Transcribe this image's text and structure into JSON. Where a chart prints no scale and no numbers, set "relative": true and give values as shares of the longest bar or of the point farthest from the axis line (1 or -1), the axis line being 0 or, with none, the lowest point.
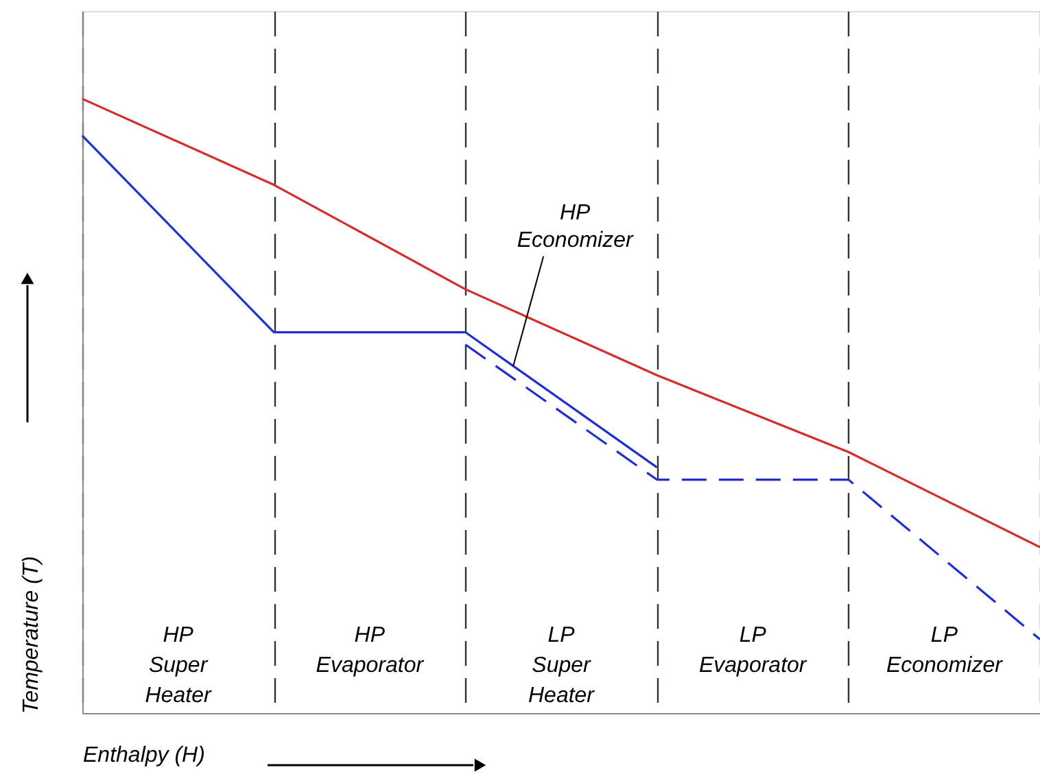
{
  "chart_data": {
    "type": "line",
    "relative": true,
    "xlabel": "Enthalpy (H)",
    "ylabel": "Temperature (T)",
    "categories": [
      null,
      null,
      null,
      null,
      null,
      null
    ],
    "tick_labels": false,
    "grid": "x",
    "marker": "none",
    "series": [
      {
        "color": "#d42b2b",
        "line_style": "solid",
        "values": [
          1.0,
          0.86,
          0.69,
          0.55,
          0.425,
          0.27
        ]
      },
      {
        "color": "#1f2fd0",
        "line_style": "solid",
        "values": [
          0.94,
          0.62,
          0.62,
          0.4,
          null,
          null
        ]
      },
      {
        "color": "#1f2fd0",
        "line_style": "dashed",
        "values": [
          null,
          null,
          0.6,
          0.38,
          0.38,
          0.12
        ]
      }
    ],
    "annotations": [
      "HP Super Heater",
      "HP Evaporator",
      "LP Super Heater",
      "LP Evaporator",
      "LP Economizer",
      "HP Economizer"
    ]
  }
}
